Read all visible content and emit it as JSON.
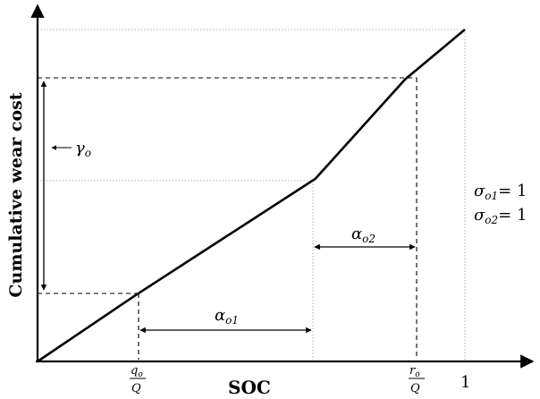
{
  "chart_data": {
    "type": "line",
    "xlabel": "SOC",
    "ylabel": "Cumulative wear cost",
    "x_ticks": {
      "q_num": "q",
      "q_sub": "o",
      "q_den": "Q",
      "r_num": "r",
      "r_sub": "o",
      "r_den": "Q",
      "one": "1"
    },
    "annotations": {
      "gamma": {
        "sym": "γ",
        "sub": "o"
      },
      "alpha1": {
        "sym": "α",
        "sub": "o1"
      },
      "alpha2": {
        "sym": "α",
        "sub": "o2"
      },
      "sigma1": {
        "sym": "σ",
        "sub": "o1",
        "rhs": "= 1"
      },
      "sigma2": {
        "sym": "σ",
        "sub": "o2",
        "rhs": "= 1"
      }
    },
    "series": [
      {
        "points": [
          [
            0,
            0
          ],
          [
            0.23,
            0.2
          ],
          [
            0.65,
            0.55
          ],
          [
            0.86,
            0.85
          ],
          [
            1,
            1
          ]
        ]
      }
    ],
    "xlim": [
      0,
      1
    ],
    "ylim": [
      0,
      1
    ]
  }
}
